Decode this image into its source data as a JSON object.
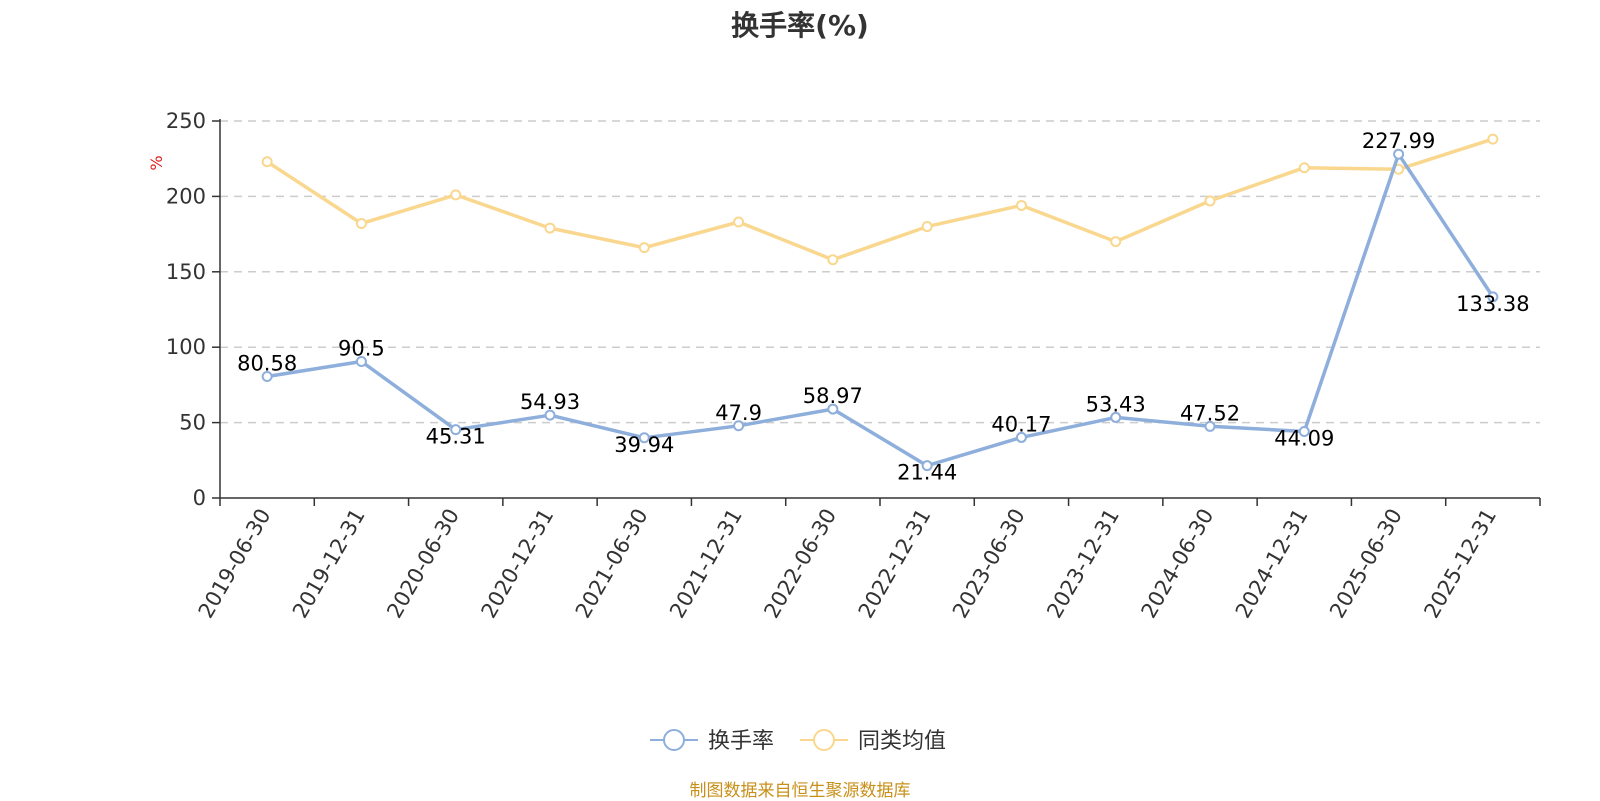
{
  "source_note": "制图数据来自恒生聚源数据库",
  "chart_data": {
    "type": "line",
    "title": "换手率(%)",
    "ylabel": "%",
    "ylim": [
      0,
      250
    ],
    "yticks": [
      0,
      50,
      100,
      150,
      200,
      250
    ],
    "grid": true,
    "legend_position": "bottom",
    "categories": [
      "2019-06-30",
      "2019-12-31",
      "2020-06-30",
      "2020-12-31",
      "2021-06-30",
      "2021-12-31",
      "2022-06-30",
      "2022-12-31",
      "2023-06-30",
      "2023-12-31",
      "2024-06-30",
      "2024-12-31",
      "2025-06-30",
      "2025-12-31"
    ],
    "series": [
      {
        "name": "换手率",
        "color": "#8eaedb",
        "show_labels": true,
        "values": [
          80.58,
          90.5,
          45.31,
          54.93,
          39.94,
          47.9,
          58.97,
          21.44,
          40.17,
          53.43,
          47.52,
          44.09,
          227.99,
          133.38
        ]
      },
      {
        "name": "同类均值",
        "color": "#f9d78e",
        "show_labels": false,
        "values": [
          223,
          182,
          201,
          179,
          166,
          183,
          158,
          180,
          194,
          170,
          197,
          219,
          218,
          238
        ]
      }
    ]
  }
}
